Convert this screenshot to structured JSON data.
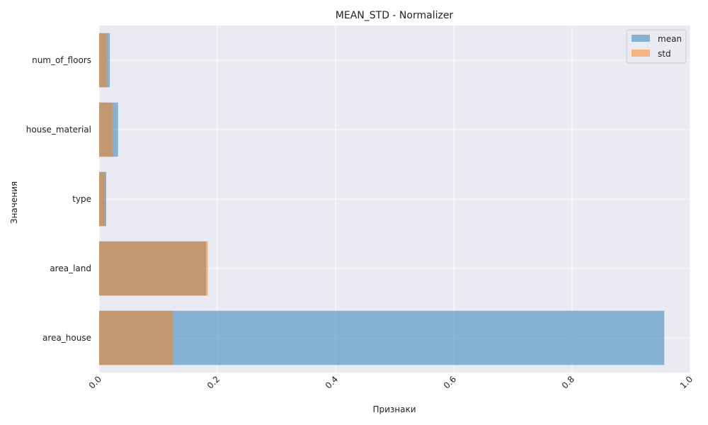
{
  "chart_data": {
    "type": "bar",
    "orientation": "horizontal",
    "title": "MEAN_STD - Normalizer",
    "xlabel": "Признаки",
    "ylabel": "Значения",
    "categories": [
      "area_house",
      "area_land",
      "type",
      "house_material",
      "num_of_floors"
    ],
    "series": [
      {
        "name": "mean",
        "values": [
          0.956,
          0.181,
          0.012,
          0.032,
          0.018
        ],
        "color": "#1f77b4"
      },
      {
        "name": "std",
        "values": [
          0.125,
          0.184,
          0.01,
          0.023,
          0.013
        ],
        "color": "#ff7f0e"
      }
    ],
    "xlim": [
      0,
      1.0
    ],
    "xticks": [
      0.0,
      0.2,
      0.4,
      0.6,
      0.8,
      1.0
    ],
    "xtick_labels": [
      "0.0",
      "0.2",
      "0.4",
      "0.6",
      "0.8",
      "1.0"
    ],
    "grid": true,
    "legend": "top-right",
    "background": "#eaeaf2"
  }
}
